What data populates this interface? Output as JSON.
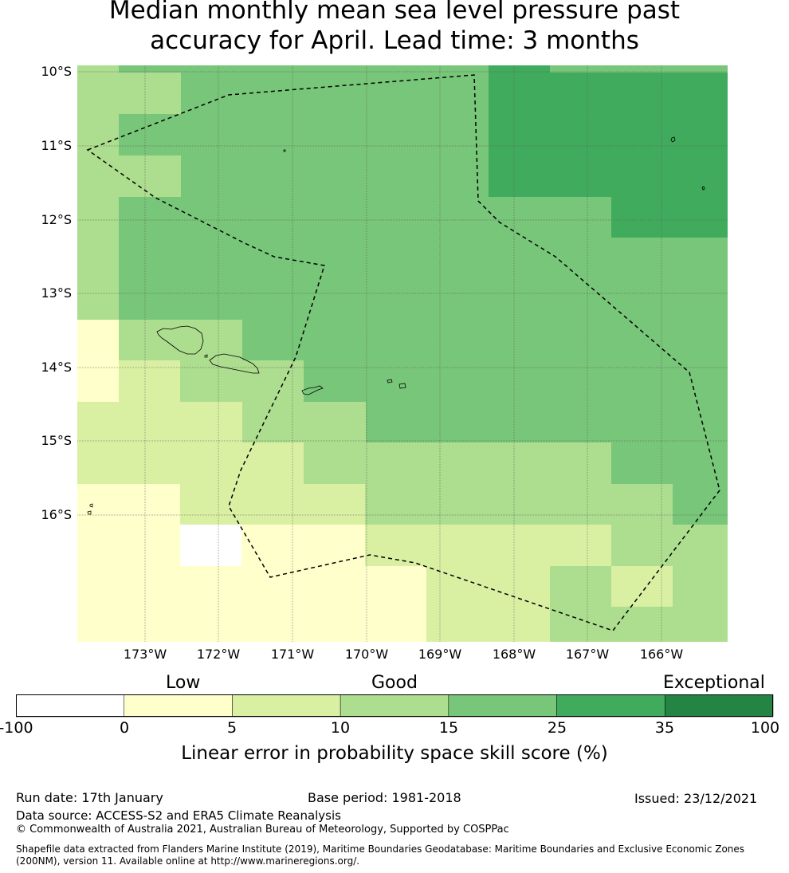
{
  "title_line1": "Median monthly mean sea level pressure past",
  "title_line2": "accuracy for April. Lead time: 3 months",
  "map": {
    "lat_labels": [
      "10°S",
      "11°S",
      "12°S",
      "13°S",
      "14°S",
      "15°S",
      "16°S"
    ],
    "lon_labels": [
      "173°W",
      "172°W",
      "171°W",
      "170°W",
      "169°W",
      "168°W",
      "167°W",
      "166°W"
    ],
    "grid_lines": "dotted",
    "boundary_line": "dashed",
    "colors": {
      "c0": "#ffffff",
      "c1": "#ffffcc",
      "c2": "#d9f0a3",
      "c3": "#addd8e",
      "c4": "#78c679",
      "c5": "#41ab5d",
      "c6": "#238443"
    }
  },
  "colorbar": {
    "categories": [
      "Low",
      "Good",
      "Exceptional"
    ],
    "ticks": [
      "-100",
      "0",
      "5",
      "10",
      "15",
      "25",
      "35",
      "100"
    ],
    "colors": [
      "#ffffff",
      "#ffffcc",
      "#d9f0a3",
      "#addd8e",
      "#78c679",
      "#41ab5d",
      "#238443"
    ],
    "label": "Linear error in probability space skill score (%)"
  },
  "footer": {
    "run_date": "Run date: 17th January",
    "base_period": "Base period: 1981-2018",
    "issued": "Issued: 23/12/2021",
    "data_source": "Data source: ACCESS-S2 and ERA5 Climate Reanalysis",
    "copyright": "© Commonwealth of Australia 2021, Australian Bureau of Meteorology, Supported by COSPPac",
    "shapefile_line1": "Shapefile data extracted from Flanders Marine Institute (2019), Maritime Boundaries Geodatabase: Maritime Boundaries and Exclusive Economic Zones",
    "shapefile_line2": "(200NM), version 11. Available online at http://www.marineregions.org/."
  }
}
